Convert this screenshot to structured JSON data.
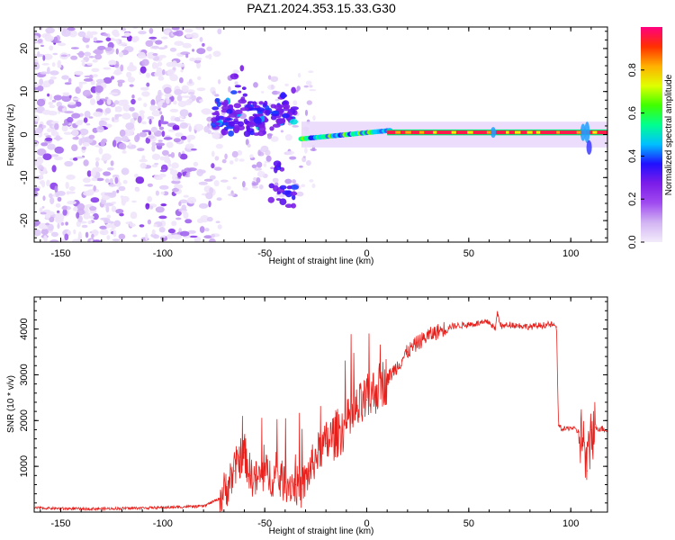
{
  "title": "PAZ1.2024.353.15.33.G30",
  "chart_data": [
    {
      "type": "heatmap",
      "xlabel": "Height of straight line (km)",
      "ylabel": "Frequency (Hz)",
      "xlim": [
        -163,
        118
      ],
      "ylim": [
        -25,
        25
      ],
      "x_ticks": [
        -150,
        -100,
        -50,
        0,
        50,
        100
      ],
      "y_ticks": [
        -20,
        -10,
        0,
        10,
        20
      ],
      "colorbar": {
        "label": "Normalized spectral amplitude",
        "range": [
          0,
          1
        ],
        "ticks": [
          0.0,
          0.2,
          0.4,
          0.6,
          0.8
        ],
        "colors": [
          "#f3ecfb",
          "#d2b4f3",
          "#a04bf0",
          "#7c1ce8",
          "#2010ff",
          "#00c0ff",
          "#00ff90",
          "#40ff00",
          "#e0ff00",
          "#ffb000",
          "#ff3000",
          "#ff0080"
        ]
      },
      "signal_track": [
        [
          -75,
          4
        ],
        [
          -70,
          5
        ],
        [
          -65,
          3
        ],
        [
          -60,
          4
        ],
        [
          -55,
          6
        ],
        [
          -50,
          5
        ],
        [
          -45,
          3
        ],
        [
          -40,
          1
        ],
        [
          -35,
          -1
        ],
        [
          -30,
          -1
        ],
        [
          -20,
          -1
        ],
        [
          -10,
          0
        ],
        [
          0,
          1
        ],
        [
          10,
          1
        ],
        [
          30,
          0.5
        ],
        [
          60,
          0.5
        ],
        [
          100,
          0.5
        ],
        [
          118,
          0.5
        ]
      ]
    },
    {
      "type": "line",
      "xlabel": "Height of straight line (km)",
      "ylabel": "SNR (10 * v/v)",
      "xlim": [
        -163,
        118
      ],
      "ylim": [
        0,
        4700
      ],
      "x_ticks": [
        -150,
        -100,
        -50,
        0,
        50,
        100
      ],
      "y_ticks": [
        1000,
        2000,
        3000,
        4000
      ],
      "line_color": "#e8201c",
      "series": [
        {
          "x": [
            -163,
            -140,
            -120,
            -100,
            -80,
            -72,
            -68,
            -65,
            -62,
            -60,
            -57,
            -54,
            -50,
            -45,
            -40,
            -35,
            -32,
            -28,
            -24,
            -20,
            -15,
            -10,
            -5,
            0,
            5,
            10,
            15,
            20,
            25,
            30,
            35,
            40,
            50,
            60,
            63,
            64,
            66,
            70,
            80,
            90,
            93,
            94,
            96,
            100,
            104,
            106,
            108,
            110,
            112,
            118
          ],
          "y": [
            90,
            70,
            80,
            100,
            130,
            300,
            600,
            900,
            1200,
            1300,
            800,
            700,
            850,
            750,
            650,
            600,
            500,
            900,
            1300,
            1500,
            1700,
            1900,
            2200,
            2450,
            2700,
            2900,
            3200,
            3500,
            3700,
            3850,
            3950,
            4050,
            4100,
            4150,
            4000,
            4350,
            4050,
            4100,
            4050,
            4100,
            4050,
            1900,
            1800,
            1850,
            1750,
            1600,
            900,
            1800,
            1850,
            1800
          ]
        }
      ]
    }
  ]
}
